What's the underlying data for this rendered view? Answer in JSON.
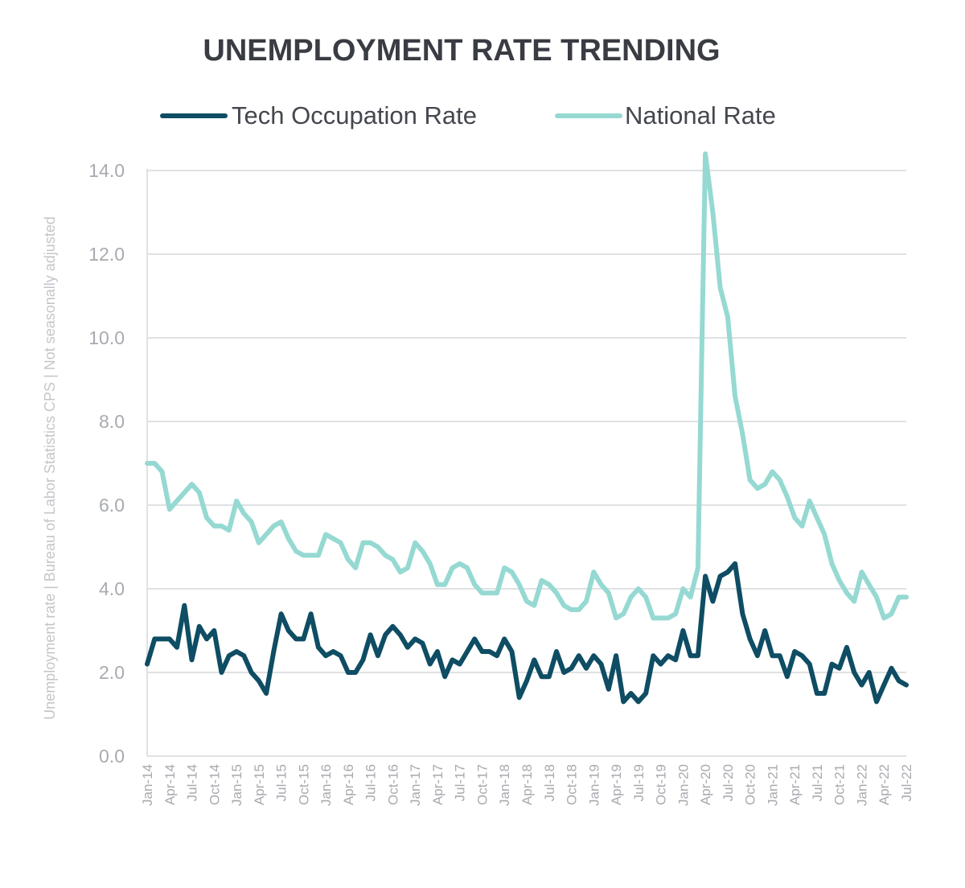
{
  "chart_data": {
    "type": "line",
    "title": "UNEMPLOYMENT RATE TRENDING",
    "ylabel": "Unemployment rate | Bureau of Labor Statistics CPS | Not seasonally adjusted",
    "xlabel": "",
    "ylim": [
      0,
      15
    ],
    "yticks": [
      0,
      2,
      4,
      6,
      8,
      10,
      12,
      14
    ],
    "ytick_labels": [
      "0.0",
      "2.0",
      "4.0",
      "6.0",
      "8.0",
      "10.0",
      "12.0",
      "14.0"
    ],
    "x_start": "Jan-14",
    "x_end": "Jul-22",
    "x_tick_labels": [
      "Jan-14",
      "Apr-14",
      "Jul-14",
      "Oct-14",
      "Jan-15",
      "Apr-15",
      "Jul-15",
      "Oct-15",
      "Jan-16",
      "Apr-16",
      "Jul-16",
      "Oct-16",
      "Jan-17",
      "Apr-17",
      "Jul-17",
      "Oct-17",
      "Jan-18",
      "Apr-18",
      "Jul-18",
      "Oct-18",
      "Jan-19",
      "Apr-19",
      "Jul-19",
      "Oct-19",
      "Jan-20",
      "Apr-20",
      "Jul-20",
      "Oct-20",
      "Jan-21",
      "Apr-21",
      "Jul-21",
      "Oct-21",
      "Jan-22",
      "Apr-22",
      "Jul-22"
    ],
    "grid": true,
    "legend_position": "top",
    "series": [
      {
        "name": "Tech Occupation Rate",
        "color": "#0e4d63",
        "values": [
          2.2,
          2.8,
          2.8,
          2.8,
          2.6,
          3.6,
          2.3,
          3.1,
          2.8,
          3.0,
          2.0,
          2.4,
          2.5,
          2.4,
          2.0,
          1.8,
          1.5,
          2.5,
          3.4,
          3.0,
          2.8,
          2.8,
          3.4,
          2.6,
          2.4,
          2.5,
          2.4,
          2.0,
          2.0,
          2.3,
          2.9,
          2.4,
          2.9,
          3.1,
          2.9,
          2.6,
          2.8,
          2.7,
          2.2,
          2.5,
          1.9,
          2.3,
          2.2,
          2.5,
          2.8,
          2.5,
          2.5,
          2.4,
          2.8,
          2.5,
          1.4,
          1.8,
          2.3,
          1.9,
          1.9,
          2.5,
          2.0,
          2.1,
          2.4,
          2.1,
          2.4,
          2.2,
          1.6,
          2.4,
          1.3,
          1.5,
          1.3,
          1.5,
          2.4,
          2.2,
          2.4,
          2.3,
          3.0,
          2.4,
          2.4,
          4.3,
          3.7,
          4.3,
          4.4,
          4.6,
          3.4,
          2.8,
          2.4,
          3.0,
          2.4,
          2.4,
          1.9,
          2.5,
          2.4,
          2.2,
          1.5,
          1.5,
          2.2,
          2.1,
          2.6,
          2.0,
          1.7,
          2.0,
          1.3,
          1.7,
          2.1,
          1.8,
          1.7
        ]
      },
      {
        "name": "National Rate",
        "color": "#95d9d2",
        "values": [
          7.0,
          7.0,
          6.8,
          5.9,
          6.1,
          6.3,
          6.5,
          6.3,
          5.7,
          5.5,
          5.5,
          5.4,
          6.1,
          5.8,
          5.6,
          5.1,
          5.3,
          5.5,
          5.6,
          5.2,
          4.9,
          4.8,
          4.8,
          4.8,
          5.3,
          5.2,
          5.1,
          4.7,
          4.5,
          5.1,
          5.1,
          5.0,
          4.8,
          4.7,
          4.4,
          4.5,
          5.1,
          4.9,
          4.6,
          4.1,
          4.1,
          4.5,
          4.6,
          4.5,
          4.1,
          3.9,
          3.9,
          3.9,
          4.5,
          4.4,
          4.1,
          3.7,
          3.6,
          4.2,
          4.1,
          3.9,
          3.6,
          3.5,
          3.5,
          3.7,
          4.4,
          4.1,
          3.9,
          3.3,
          3.4,
          3.8,
          4.0,
          3.8,
          3.3,
          3.3,
          3.3,
          3.4,
          4.0,
          3.8,
          4.5,
          14.4,
          13.0,
          11.2,
          10.5,
          8.6,
          7.7,
          6.6,
          6.4,
          6.5,
          6.8,
          6.6,
          6.2,
          5.7,
          5.5,
          6.1,
          5.7,
          5.3,
          4.6,
          4.2,
          3.9,
          3.7,
          4.4,
          4.1,
          3.8,
          3.3,
          3.4,
          3.8,
          3.8
        ]
      }
    ]
  }
}
